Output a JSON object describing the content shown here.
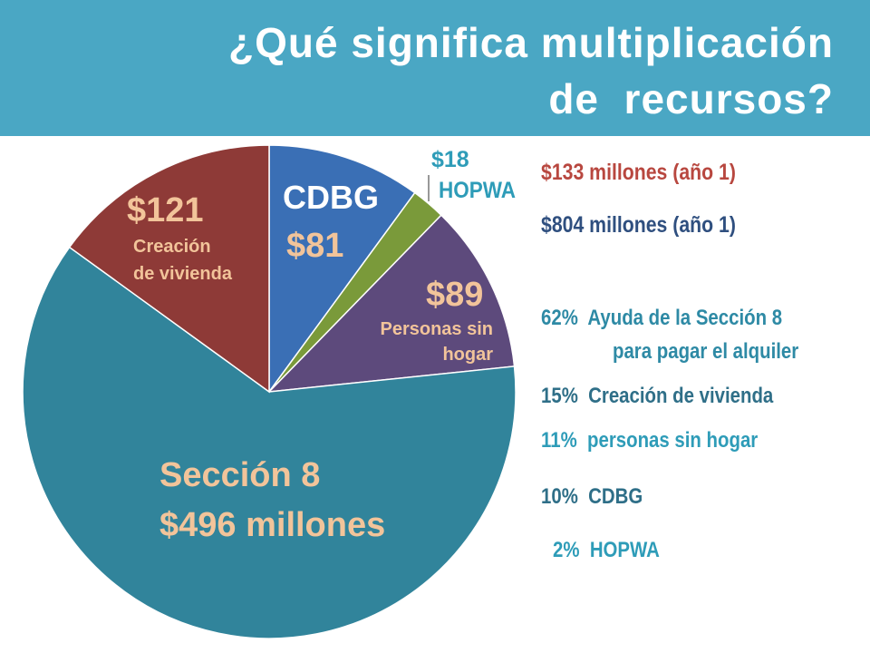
{
  "header": {
    "title_line1": "¿Qué significa multiplicación",
    "title_line2": "de  recursos?",
    "bg_color": "#4aa7c4"
  },
  "chart_data": {
    "type": "pie",
    "title": "¿Qué significa multiplicación de  recursos?",
    "unit": "millones",
    "slices": [
      {
        "name": "CDBG",
        "value": 81,
        "color": "#3a6fb5"
      },
      {
        "name": "HOPWA",
        "value": 18,
        "color": "#7a9a3a"
      },
      {
        "name": "Personas sin hogar",
        "value": 89,
        "color": "#5d4a7c"
      },
      {
        "name": "Sección 8",
        "value": 496,
        "color": "#31849b"
      },
      {
        "name": "Creación de vivienda",
        "value": 121,
        "color": "#8e3a37"
      }
    ]
  },
  "labels": {
    "cdbg_name": "CDBG",
    "cdbg_value": "$81",
    "hopwa_value": "$18",
    "hopwa_name": "HOPWA",
    "homeless_value": "$89",
    "homeless_name_l1": "Personas sin",
    "homeless_name_l2": "hogar",
    "section8_name": "Sección 8",
    "section8_value": "$496 millones",
    "housing_value": "$121",
    "housing_name_l1": "Creación",
    "housing_name_l2": "de vivienda"
  },
  "legend": {
    "total_local": "$133 millones (año 1)",
    "total_local_color": "#b8473f",
    "total_federal": "$804 millones (año 1)",
    "total_federal_color": "#2f4f7f",
    "items": [
      {
        "text": "62%  Ayuda de la Sección 8",
        "color": "#2e8aa5"
      },
      {
        "text": "para pagar el alquiler",
        "color": "#2e8aa5"
      },
      {
        "text": "15%  Creación de vivienda",
        "color": "#2f6f88"
      },
      {
        "text": "11%  personas sin hogar",
        "color": "#2e9cb8"
      },
      {
        "text": "10%  CDBG",
        "color": "#2f6f88"
      },
      {
        "text": "2%  HOPWA",
        "color": "#2e9cb8"
      }
    ]
  }
}
